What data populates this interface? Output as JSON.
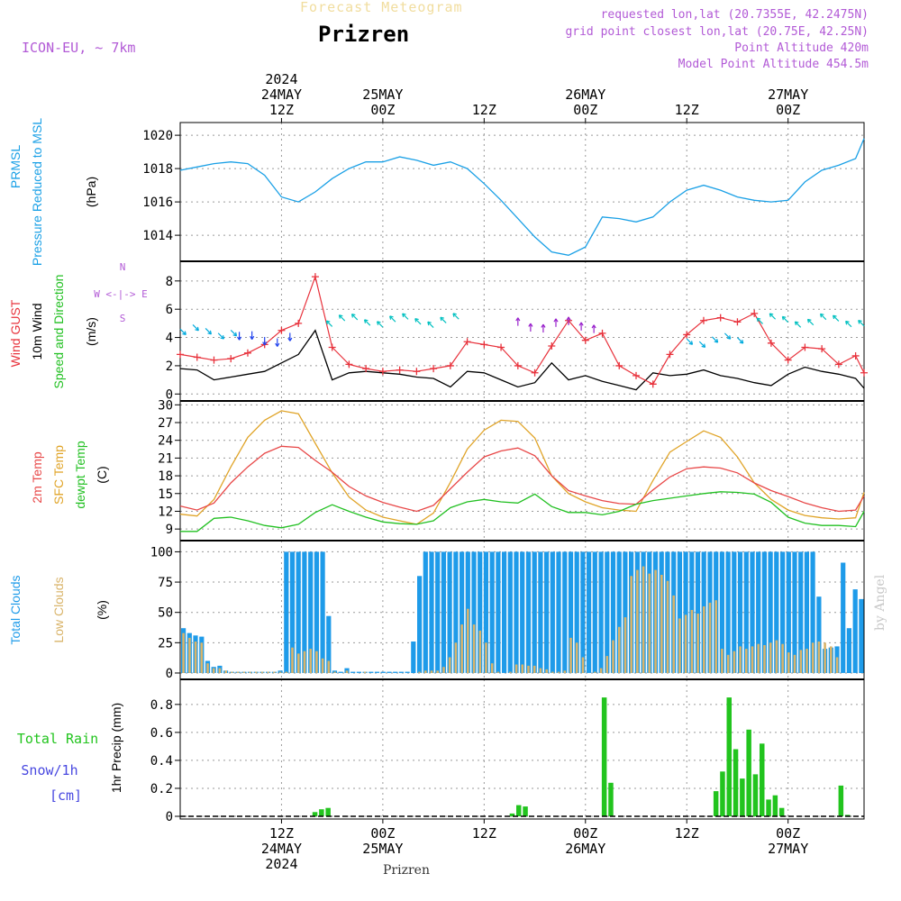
{
  "header": {
    "subtitle": "Forecast Meteogram",
    "title": "Prizren",
    "model": "ICON-EU, ~ 7km",
    "requested": "requested lon,lat (20.7355E, 42.2475N)",
    "gridpoint": "grid point closest lon,lat (20.75E, 42.25N)",
    "altitude": "Point Altitude 420m",
    "model_altitude": "Model Point Altitude 454.5m"
  },
  "footer": {
    "location": "Prizren",
    "signature": "by Angel"
  },
  "colors": {
    "pressure": "#1aa0e6",
    "gust": "#e8323c",
    "wind": "#000000",
    "temp": "#e84848",
    "sfc": "#e0a428",
    "dewpt": "#22c022",
    "clouds": "#1e9be9",
    "low": "#d9b46a",
    "rain": "#22c41e",
    "snow": "#4848e0",
    "legend": "#b25ad6",
    "frame": "#000000"
  },
  "chart_data": [
    {
      "type": "line",
      "panel": "pressure",
      "ylabel_lines": [
        "PRMSL",
        "Pressure Reduced to MSL",
        "(hPa)"
      ],
      "ylim": [
        1012.6,
        1020.6
      ],
      "yticks": [
        1014,
        1016,
        1018,
        1020
      ],
      "x_hours": "hours from 2024-05-24 00Z (approx 0 to 81)",
      "x": [
        0,
        2,
        4,
        6,
        8,
        10,
        12,
        14,
        16,
        18,
        20,
        22,
        24,
        26,
        28,
        30,
        32,
        34,
        36,
        38,
        40,
        42,
        44,
        46,
        48,
        50,
        52,
        54,
        56,
        58,
        60,
        62,
        64,
        66,
        68,
        70,
        72,
        74,
        76,
        78,
        80,
        81
      ],
      "series": [
        {
          "name": "PRMSL",
          "values": [
            1017.9,
            1018.1,
            1018.3,
            1018.4,
            1018.3,
            1017.6,
            1016.3,
            1016.0,
            1016.6,
            1017.4,
            1018.0,
            1018.4,
            1018.4,
            1018.7,
            1018.5,
            1018.2,
            1018.4,
            1018.0,
            1017.1,
            1016.1,
            1015.0,
            1013.9,
            1013.0,
            1012.8,
            1013.3,
            1015.1,
            1015.0,
            1014.8,
            1015.1,
            1016.0,
            1016.7,
            1017.0,
            1016.7,
            1016.3,
            1016.1,
            1016.0,
            1016.1,
            1017.2,
            1017.9,
            1018.2,
            1018.6,
            1019.8
          ]
        }
      ]
    },
    {
      "type": "line",
      "panel": "wind",
      "ylabel_lines": [
        "Wind GUST",
        "10m Wind",
        "Speed and Direction",
        "(m/s)"
      ],
      "compass": [
        "N",
        "W <-|-> E",
        "S"
      ],
      "ylim": [
        -0.3,
        9.2
      ],
      "yticks": [
        0,
        2,
        4,
        6,
        8
      ],
      "x": [
        0,
        2,
        4,
        6,
        8,
        10,
        12,
        14,
        16,
        18,
        20,
        22,
        24,
        26,
        28,
        30,
        32,
        34,
        36,
        38,
        40,
        42,
        44,
        46,
        48,
        50,
        52,
        54,
        56,
        58,
        60,
        62,
        64,
        66,
        68,
        70,
        72,
        74,
        76,
        78,
        80,
        81
      ],
      "series": [
        {
          "name": "Wind GUST",
          "values": [
            2.8,
            2.6,
            2.4,
            2.5,
            2.9,
            3.5,
            4.5,
            5.0,
            8.3,
            3.3,
            2.1,
            1.8,
            1.6,
            1.7,
            1.6,
            1.8,
            2.0,
            3.7,
            3.5,
            3.3,
            2.0,
            1.5,
            3.4,
            5.2,
            3.8,
            4.3,
            2.0,
            1.3,
            0.7,
            2.8,
            4.2,
            5.2,
            5.4,
            5.1,
            5.7,
            3.6,
            2.4,
            3.3,
            3.2,
            2.1,
            2.7,
            1.5
          ]
        },
        {
          "name": "10m Wind",
          "values": [
            1.8,
            1.7,
            1.0,
            1.2,
            1.4,
            1.6,
            2.2,
            2.8,
            4.5,
            1.0,
            1.5,
            1.6,
            1.5,
            1.4,
            1.2,
            1.1,
            0.5,
            1.6,
            1.5,
            1.0,
            0.5,
            0.8,
            2.2,
            1.0,
            1.3,
            0.9,
            0.6,
            0.3,
            1.5,
            1.3,
            1.4,
            1.7,
            1.3,
            1.1,
            0.8,
            0.6,
            1.4,
            1.9,
            1.6,
            1.4,
            1.1,
            0.4
          ]
        }
      ],
      "arrow_bands": [
        {
          "from": 0,
          "to": 6,
          "y": 4.6,
          "dir": "SE"
        },
        {
          "from": 7,
          "to": 14,
          "y": 4.2,
          "dir": "S"
        },
        {
          "from": 18,
          "to": 33,
          "y": 5.0,
          "dir": "NW"
        },
        {
          "from": 40,
          "to": 50,
          "y": 4.6,
          "dir": "N"
        },
        {
          "from": 60,
          "to": 66,
          "y": 4.0,
          "dir": "SE"
        },
        {
          "from": 69,
          "to": 81,
          "y": 5.0,
          "dir": "NW"
        }
      ]
    },
    {
      "type": "line",
      "panel": "temperature",
      "ylabel_lines": [
        "2m Temp",
        "SFC Temp",
        "dewpt Temp",
        "(C)"
      ],
      "ylim": [
        7.5,
        30.2
      ],
      "yticks": [
        9,
        12,
        15,
        18,
        21,
        24,
        27,
        30
      ],
      "x": [
        0,
        2,
        4,
        6,
        8,
        10,
        12,
        14,
        16,
        18,
        20,
        22,
        24,
        26,
        28,
        30,
        32,
        34,
        36,
        38,
        40,
        42,
        44,
        46,
        48,
        50,
        52,
        54,
        56,
        58,
        60,
        62,
        64,
        66,
        68,
        70,
        72,
        74,
        76,
        78,
        80,
        81
      ],
      "series": [
        {
          "name": "2m Temp",
          "values": [
            12.9,
            12.2,
            13.4,
            16.8,
            19.5,
            21.8,
            23.0,
            22.8,
            20.6,
            18.6,
            16.2,
            14.6,
            13.5,
            12.7,
            12.0,
            13.0,
            15.8,
            18.6,
            21.2,
            22.2,
            22.7,
            21.4,
            18.0,
            15.5,
            14.6,
            13.8,
            13.3,
            13.2,
            15.6,
            17.8,
            19.2,
            19.5,
            19.3,
            18.5,
            16.8,
            15.5,
            14.5,
            13.4,
            12.6,
            12.0,
            12.2,
            14.6
          ]
        },
        {
          "name": "SFC Temp",
          "values": [
            11.5,
            11.2,
            14.0,
            19.5,
            24.5,
            27.4,
            29.0,
            28.5,
            23.5,
            18.5,
            14.4,
            12.2,
            11.0,
            10.4,
            9.8,
            11.7,
            16.9,
            22.5,
            25.7,
            27.4,
            27.2,
            24.4,
            18.0,
            15.0,
            13.6,
            12.6,
            12.2,
            12.0,
            17.2,
            22.0,
            23.8,
            25.6,
            24.5,
            21.2,
            16.8,
            14.0,
            12.2,
            11.3,
            10.9,
            10.7,
            10.9,
            15.2
          ]
        },
        {
          "name": "dewpt Temp",
          "values": [
            8.6,
            8.6,
            10.8,
            11.0,
            10.4,
            9.6,
            9.2,
            9.8,
            11.8,
            13.1,
            12.0,
            11.0,
            10.2,
            9.9,
            9.8,
            10.4,
            12.6,
            13.6,
            14.0,
            13.6,
            13.4,
            14.9,
            12.8,
            11.8,
            11.8,
            11.4,
            12.0,
            13.2,
            13.8,
            14.2,
            14.6,
            15.0,
            15.3,
            15.2,
            14.9,
            13.5,
            11.0,
            10.0,
            9.6,
            9.6,
            9.4,
            12.0
          ]
        }
      ]
    },
    {
      "type": "bar",
      "panel": "clouds",
      "ylabel_lines": [
        "Total Clouds",
        "Low Clouds",
        "(%)"
      ],
      "ylim": [
        -3,
        107
      ],
      "yticks": [
        0,
        25,
        50,
        75,
        100
      ],
      "x_start": 0,
      "x_step": 1,
      "series": [
        {
          "name": "Total Clouds",
          "values": [
            37,
            33,
            31,
            30,
            10,
            5,
            6,
            2,
            1,
            1,
            1,
            1,
            1,
            1,
            1,
            1,
            2,
            100,
            100,
            100,
            100,
            100,
            100,
            100,
            47,
            2,
            1,
            4,
            1,
            1,
            1,
            1,
            1,
            1,
            1,
            1,
            1,
            1,
            26,
            80,
            100,
            100,
            100,
            100,
            100,
            100,
            100,
            100,
            100,
            100,
            100,
            100,
            100,
            100,
            100,
            100,
            100,
            100,
            100,
            100,
            100,
            100,
            100,
            100,
            100,
            100,
            100,
            100,
            100,
            100,
            100,
            100,
            100,
            100,
            100,
            100,
            100,
            100,
            100,
            100,
            100,
            100,
            100,
            100,
            100,
            100,
            100,
            100,
            100,
            100,
            100,
            100,
            100,
            100,
            100,
            100,
            100,
            100,
            100,
            100,
            100,
            100,
            100,
            100,
            100,
            63,
            20,
            21,
            22,
            91,
            37,
            69,
            61
          ]
        },
        {
          "name": "Low Clouds",
          "values": [
            33,
            29,
            26,
            25,
            8,
            4,
            4,
            2,
            1,
            1,
            1,
            1,
            1,
            1,
            1,
            1,
            1,
            1,
            21,
            16,
            18,
            20,
            18,
            12,
            10,
            1,
            0,
            2,
            0,
            0,
            1,
            0,
            0,
            0,
            0,
            0,
            0,
            0,
            0,
            1,
            2,
            2,
            2,
            5,
            13,
            25,
            40,
            53,
            40,
            35,
            25,
            8,
            1,
            0,
            1,
            7,
            7,
            6,
            6,
            4,
            3,
            1,
            1,
            2,
            29,
            25,
            13,
            0,
            1,
            4,
            14,
            27,
            38,
            46,
            80,
            85,
            88,
            82,
            85,
            81,
            76,
            64,
            45,
            48,
            52,
            49,
            55,
            58,
            60,
            20,
            15,
            18,
            22,
            20,
            22,
            24,
            23,
            25,
            27,
            24,
            17,
            15,
            19,
            20,
            25,
            26,
            25,
            22,
            13
          ]
        }
      ]
    },
    {
      "type": "bar",
      "panel": "precip",
      "ylabel_lines": [
        "Total  Rain",
        "Snow/1h",
        "[cm]",
        "1hr Precip (mm)"
      ],
      "ylim": [
        0,
        0.96
      ],
      "yticks": [
        0,
        0.2,
        0.4,
        0.6,
        0.8
      ],
      "x_start": 0,
      "x_step": 1,
      "series": [
        {
          "name": "Total Rain",
          "values": [
            0,
            0,
            0,
            0,
            0,
            0,
            0,
            0,
            0,
            0,
            0,
            0,
            0,
            0,
            0,
            0,
            0,
            0,
            0,
            0,
            0.03,
            0.05,
            0.06,
            0,
            0,
            0,
            0,
            0,
            0,
            0,
            0,
            0,
            0,
            0,
            0,
            0,
            0,
            0,
            0,
            0,
            0,
            0,
            0,
            0,
            0,
            0,
            0,
            0,
            0,
            0,
            0.02,
            0.08,
            0.07,
            0,
            0,
            0,
            0,
            0,
            0,
            0,
            0,
            0,
            0,
            0,
            0.85,
            0.24,
            0,
            0,
            0,
            0,
            0,
            0,
            0,
            0,
            0,
            0,
            0,
            0,
            0,
            0,
            0,
            0.18,
            0.32,
            0.85,
            0.48,
            0.27,
            0.62,
            0.3,
            0.52,
            0.12,
            0.15,
            0.06,
            0,
            0,
            0,
            0,
            0,
            0,
            0,
            0,
            0.22,
            0.01,
            0,
            0
          ]
        }
      ]
    }
  ],
  "time_axis": {
    "x_hours_range": [
      0,
      81
    ],
    "gridlines_hours": [
      12,
      24,
      36,
      48,
      60,
      72
    ],
    "top": [
      {
        "h": 12,
        "lines": [
          "2024",
          "24MAY",
          "12Z"
        ]
      },
      {
        "h": 24,
        "lines": [
          "25MAY",
          "00Z"
        ]
      },
      {
        "h": 36,
        "lines": [
          "12Z"
        ]
      },
      {
        "h": 48,
        "lines": [
          "26MAY",
          "00Z"
        ]
      },
      {
        "h": 60,
        "lines": [
          "12Z"
        ]
      },
      {
        "h": 72,
        "lines": [
          "27MAY",
          "00Z"
        ]
      }
    ],
    "bottom": [
      {
        "h": 12,
        "lines": [
          "12Z",
          "24MAY",
          "2024"
        ]
      },
      {
        "h": 24,
        "lines": [
          "00Z",
          "25MAY"
        ]
      },
      {
        "h": 36,
        "lines": [
          "12Z"
        ]
      },
      {
        "h": 48,
        "lines": [
          "00Z",
          "26MAY"
        ]
      },
      {
        "h": 60,
        "lines": [
          "12Z"
        ]
      },
      {
        "h": 72,
        "lines": [
          "00Z",
          "27MAY"
        ]
      }
    ]
  }
}
